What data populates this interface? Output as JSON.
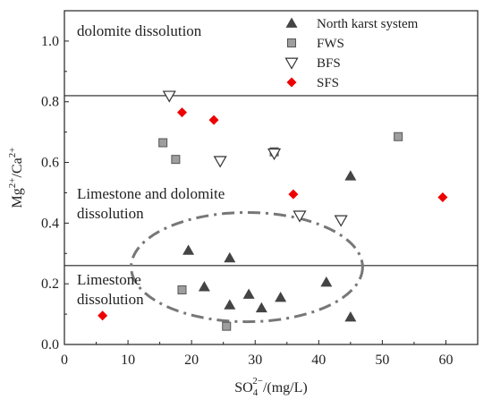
{
  "chart_data": {
    "type": "scatter",
    "title": "",
    "xlabel": {
      "base": "SO",
      "sub": "4",
      "sup": "2−",
      "rest": "/(mg/L)"
    },
    "ylabel": {
      "a": "Mg",
      "a_sup": "2+",
      "mid": "/Ca",
      "b_sup": "2+"
    },
    "xlim": [
      0,
      65
    ],
    "ylim": [
      0,
      1.1
    ],
    "xticks": [
      "0",
      "10",
      "20",
      "30",
      "40",
      "50",
      "60"
    ],
    "yticks": [
      "0.0",
      "0.2",
      "0.4",
      "0.6",
      "0.8",
      "1.0"
    ],
    "threshold_lines": [
      0.82,
      0.26
    ],
    "zones": [
      {
        "lines": [
          "dolomite  dissolution"
        ]
      },
      {
        "lines": [
          "Limestone and dolomite",
          "dissolution"
        ]
      },
      {
        "lines": [
          "Limestone",
          "dissolution"
        ]
      }
    ],
    "series": [
      {
        "name": "North karst system",
        "marker": "triangle-up",
        "color": "#444444",
        "points": [
          [
            19.5,
            0.31
          ],
          [
            26,
            0.285
          ],
          [
            22,
            0.19
          ],
          [
            29,
            0.165
          ],
          [
            26,
            0.13
          ],
          [
            31,
            0.12
          ],
          [
            34,
            0.155
          ],
          [
            41.2,
            0.205
          ],
          [
            45,
            0.555
          ],
          [
            45,
            0.09
          ]
        ]
      },
      {
        "name": "FWS",
        "marker": "square",
        "color": "#9e9e9e",
        "points": [
          [
            15.5,
            0.665
          ],
          [
            17.5,
            0.61
          ],
          [
            18.5,
            0.18
          ],
          [
            25.5,
            0.06
          ],
          [
            33,
            0.635
          ],
          [
            52.5,
            0.685
          ]
        ]
      },
      {
        "name": "BFS",
        "marker": "triangle-down",
        "color": "#333333",
        "points": [
          [
            16.5,
            0.82
          ],
          [
            24.5,
            0.605
          ],
          [
            33,
            0.63
          ],
          [
            37,
            0.425
          ],
          [
            43.5,
            0.41
          ]
        ]
      },
      {
        "name": "SFS",
        "marker": "diamond",
        "color": "#ee0000",
        "points": [
          [
            18.5,
            0.765
          ],
          [
            23.5,
            0.74
          ],
          [
            36,
            0.495
          ],
          [
            59.5,
            0.485
          ],
          [
            6,
            0.095
          ]
        ]
      }
    ],
    "annotation": {
      "shape": "dash-dot ellipse",
      "center": [
        28.7,
        0.255
      ],
      "rx": 18.2,
      "ry": 0.18
    },
    "legend_position": "top-right",
    "grid": false
  }
}
